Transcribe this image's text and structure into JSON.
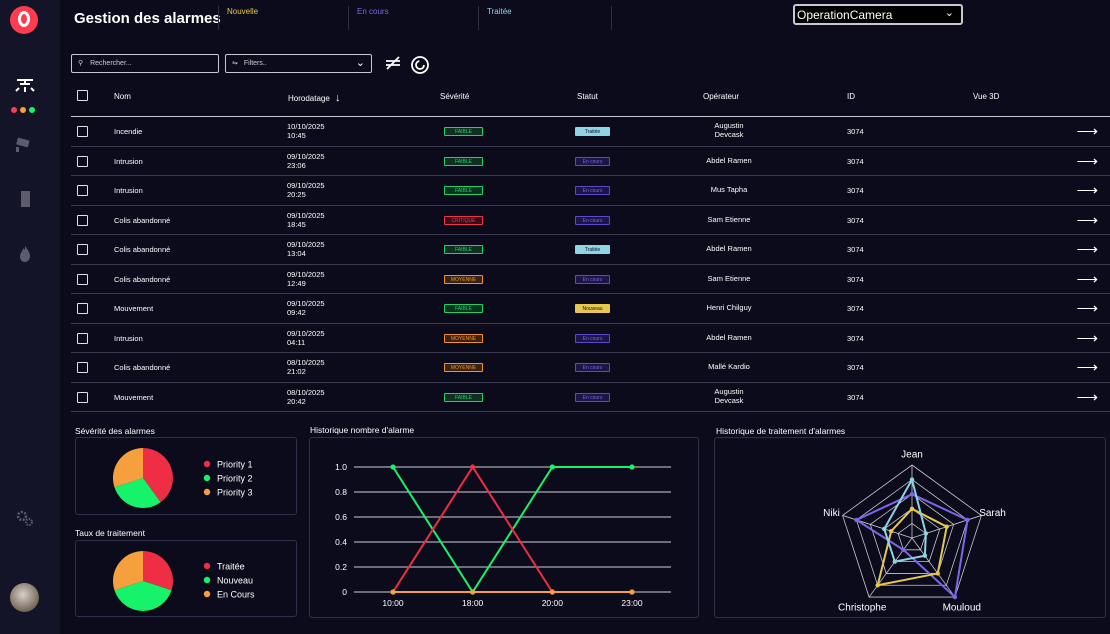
{
  "header": {
    "title": "Gestion des alarmes",
    "tabs": [
      {
        "label": "Nouvelle",
        "color": "#e7c84e"
      },
      {
        "label": "En cours",
        "color": "#7d66e8"
      },
      {
        "label": "Traitée",
        "color": "#8fd4e2"
      }
    ],
    "camera_select": "OperationCamera"
  },
  "toolbar": {
    "search_placeholder": "Rechercher...",
    "filter_label": "Filters.."
  },
  "table": {
    "columns": [
      "Nom",
      "Horodatage",
      "Sévérité",
      "Statut",
      "Opérateur",
      "ID",
      "Vue 3D"
    ],
    "rows": [
      {
        "nom": "Incendie",
        "date": "10/10/2025",
        "time": "10:45",
        "severite": "FAIBLE",
        "statut": "Traitée",
        "op1": "Augustin",
        "op2": "Devcask",
        "id": "3074"
      },
      {
        "nom": "Intrusion",
        "date": "09/10/2025",
        "time": "23:06",
        "severite": "FAIBLE",
        "statut": "En cours",
        "op1": "Abdel Ramen",
        "op2": "",
        "id": "3074"
      },
      {
        "nom": "Intrusion",
        "date": "09/10/2025",
        "time": "20:25",
        "severite": "FAIBLE",
        "statut": "En cours",
        "op1": "Mus Tapha",
        "op2": "",
        "id": "3074"
      },
      {
        "nom": "Colis abandonné",
        "date": "09/10/2025",
        "time": "18:45",
        "severite": "CRITIQUE",
        "statut": "En cours",
        "op1": "Sam Etienne",
        "op2": "",
        "id": "3074"
      },
      {
        "nom": "Colis abandonné",
        "date": "09/10/2025",
        "time": "13:04",
        "severite": "FAIBLE",
        "statut": "Traitée",
        "op1": "Abdel Ramen",
        "op2": "",
        "id": "3074"
      },
      {
        "nom": "Colis abandonné",
        "date": "09/10/2025",
        "time": "12:49",
        "severite": "MOYENNE",
        "statut": "En cours",
        "op1": "Sam Etienne",
        "op2": "",
        "id": "3074"
      },
      {
        "nom": "Mouvement",
        "date": "09/10/2025",
        "time": "09:42",
        "severite": "FAIBLE",
        "statut": "Nouveau",
        "op1": "Henri Chilguy",
        "op2": "",
        "id": "3074"
      },
      {
        "nom": "Intrusion",
        "date": "09/10/2025",
        "time": "04:11",
        "severite": "MOYENNE",
        "statut": "En cours",
        "op1": "Abdel Ramen",
        "op2": "",
        "id": "3074"
      },
      {
        "nom": "Colis abandonné",
        "date": "08/10/2025",
        "time": "21:02",
        "severite": "MOYENNE",
        "statut": "En cours",
        "op1": "Mallé Kardio",
        "op2": "",
        "id": "3074"
      },
      {
        "nom": "Mouvement",
        "date": "08/10/2025",
        "time": "20:42",
        "severite": "FAIBLE",
        "statut": "En cours",
        "op1": "Augustin",
        "op2": "Devcask",
        "id": "3074"
      }
    ]
  },
  "badge_styles": {
    "FAIBLE": {
      "border": "#1fd16a",
      "text": "#1fd16a",
      "bg": "#0d3320"
    },
    "CRITIQUE": {
      "border": "#e8384c",
      "text": "#e8384c",
      "bg": "#3a0e17"
    },
    "MOYENNE": {
      "border": "#f0902e",
      "text": "#f0902e",
      "bg": "#3a2310"
    },
    "Traitée": {
      "border": "#8fd4e2",
      "text": "#0b0b1c",
      "bg": "#8fd4e2"
    },
    "En cours": {
      "border": "#5b49c8",
      "text": "#7d66e8",
      "bg": "#1c1545"
    },
    "Nouveau": {
      "border": "#e7c84e",
      "text": "#0b0b1c",
      "bg": "#e7c84e"
    }
  },
  "panels": {
    "severity_title": "Sévérité des alarmes",
    "treatment_title": "Taux de traitement",
    "history_title": "Historique nombre d'alarme",
    "radar_title": "Historique de traitement d'alarmes"
  },
  "chart_data": [
    {
      "type": "pie",
      "labels": [
        "Priority 1",
        "Priority 2",
        "Priority 3"
      ],
      "values": [
        40,
        30,
        30
      ],
      "colors": [
        "#ee2e45",
        "#16f36a",
        "#f5a03c"
      ]
    },
    {
      "type": "pie",
      "labels": [
        "Traitée",
        "Nouveau",
        "En Cours"
      ],
      "values": [
        30,
        40,
        30
      ],
      "colors": [
        "#ee2e45",
        "#16f36a",
        "#f5a03c"
      ]
    },
    {
      "type": "line",
      "categories": [
        "10:00",
        "18:00",
        "20:00",
        "23:00"
      ],
      "yticks": [
        "0",
        "0.2",
        "0.4",
        "0.6",
        "0.8",
        "1.0"
      ],
      "ylim": [
        0,
        1
      ],
      "series": [
        {
          "color": "#16f36a",
          "values": [
            1,
            0,
            1,
            1
          ]
        },
        {
          "color": "#ee2e45",
          "values": [
            0,
            1,
            0,
            0
          ]
        },
        {
          "color": "#f5a03c",
          "values": [
            0,
            0,
            0,
            0
          ]
        }
      ]
    },
    {
      "type": "radar",
      "axes": [
        "Jean",
        "Sarah",
        "Mouloud",
        "Christophe",
        "Niki"
      ],
      "max": 5,
      "series": [
        {
          "color": "#7d66e8",
          "values": [
            3,
            4,
            5,
            1,
            4
          ]
        },
        {
          "color": "#e7c84e",
          "values": [
            2,
            2.5,
            3,
            4,
            1.5
          ]
        },
        {
          "color": "#8fd4e2",
          "values": [
            4,
            1,
            1.5,
            2,
            2
          ]
        }
      ]
    }
  ]
}
